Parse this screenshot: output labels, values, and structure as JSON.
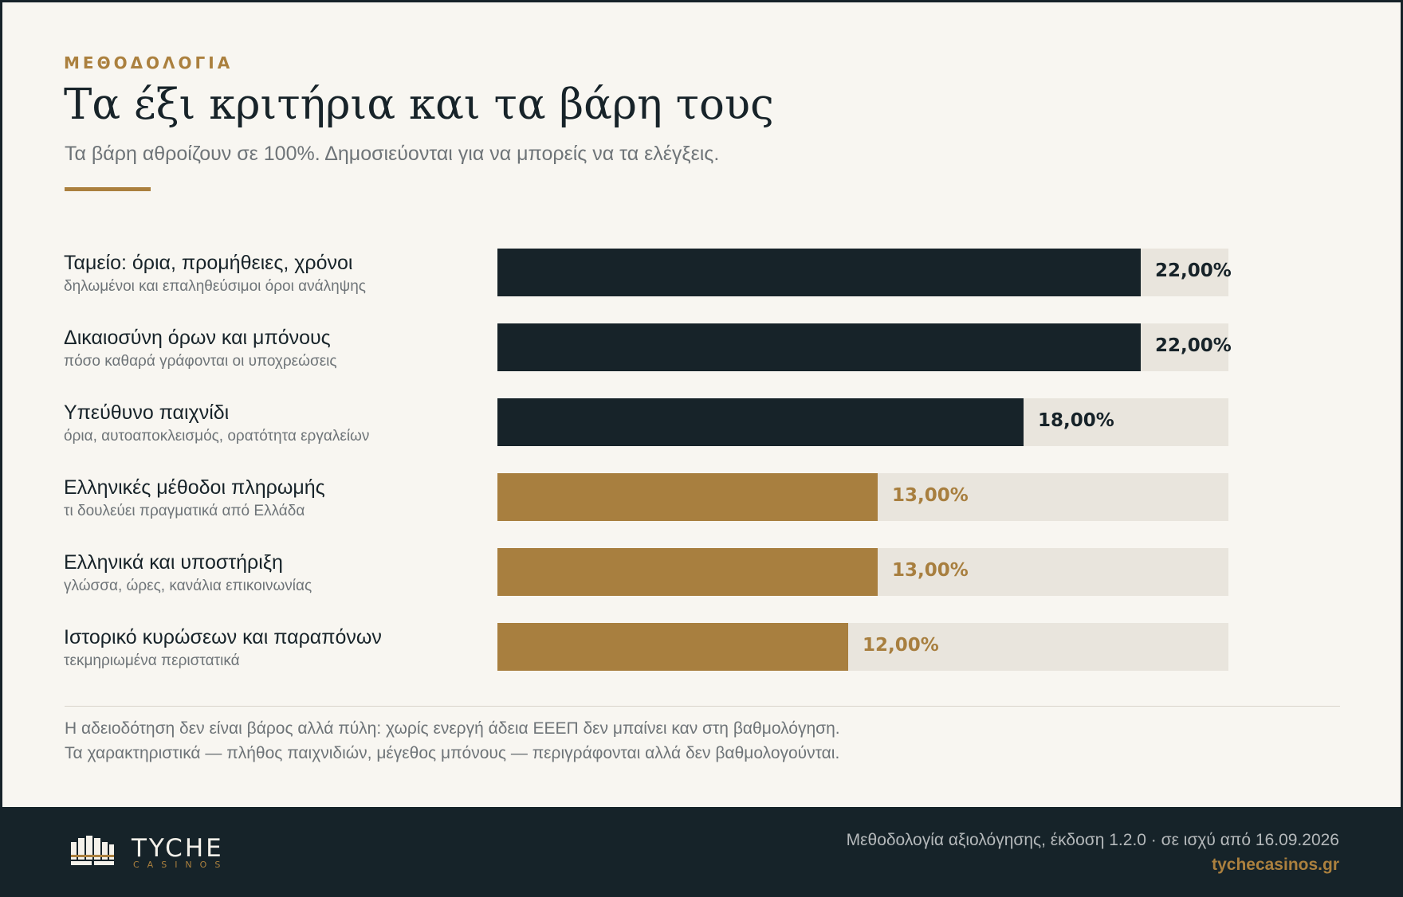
{
  "header": {
    "eyebrow": "ΜΕΘΟΔΟΛΟΓΙΑ",
    "title": "Τα έξι κριτήρια και τα βάρη τους",
    "subtitle": "Τα βάρη αθροίζουν σε 100%. Δημοσιεύονται για να μπορείς να τα ελέγξεις."
  },
  "chart_data": {
    "type": "bar",
    "orientation": "horizontal",
    "unit": "%",
    "xlim": [
      0,
      25
    ],
    "categories": [
      "Ταμείο: όρια, προμήθειες, χρόνοι",
      "Δικαιοσύνη όρων και μπόνους",
      "Υπεύθυνο παιχνίδι",
      "Ελληνικές μέθοδοι πληρωμής",
      "Ελληνικά και υποστήριξη",
      "Ιστορικό κυρώσεων και παραπόνων"
    ],
    "descriptions": [
      "δηλωμένοι και επαληθεύσιμοι όροι ανάληψης",
      "πόσο καθαρά γράφονται οι υποχρεώσεις",
      "όρια, αυτοαποκλεισμός, ορατότητα εργαλείων",
      "τι δουλεύει πραγματικά από Ελλάδα",
      "γλώσσα, ώρες, κανάλια επικοινωνίας",
      "τεκμηριωμένα περιστατικά"
    ],
    "values": [
      22,
      22,
      18,
      13,
      13,
      12
    ],
    "value_labels": [
      "22,00%",
      "22,00%",
      "18,00%",
      "13,00%",
      "13,00%",
      "12,00%"
    ],
    "grid": false,
    "colors": {
      "major": "#172329",
      "minor": "#a87f3f",
      "track": "#e9e5dd"
    }
  },
  "notes": [
    "Η αδειοδότηση δεν είναι βάρος αλλά πύλη: χωρίς ενεργή άδεια ΕΕΕΠ δεν μπαίνει καν στη βαθμολόγηση.",
    "Τα χαρακτηριστικά — πλήθος παιχνιδιών, μέγεθος μπόνους — περιγράφονται αλλά δεν βαθμολογούνται."
  ],
  "footer": {
    "logo_name": "TYCHE",
    "logo_sub": "CASINOS",
    "version": "Μεθοδολογία αξιολόγησης, έκδοση 1.2.0 · σε ισχύ από 16.09.2026",
    "site": "tychecasinos.gr"
  },
  "colors": {
    "accent": "#ab803e",
    "dark": "#162329",
    "background": "#f8f6f1"
  }
}
